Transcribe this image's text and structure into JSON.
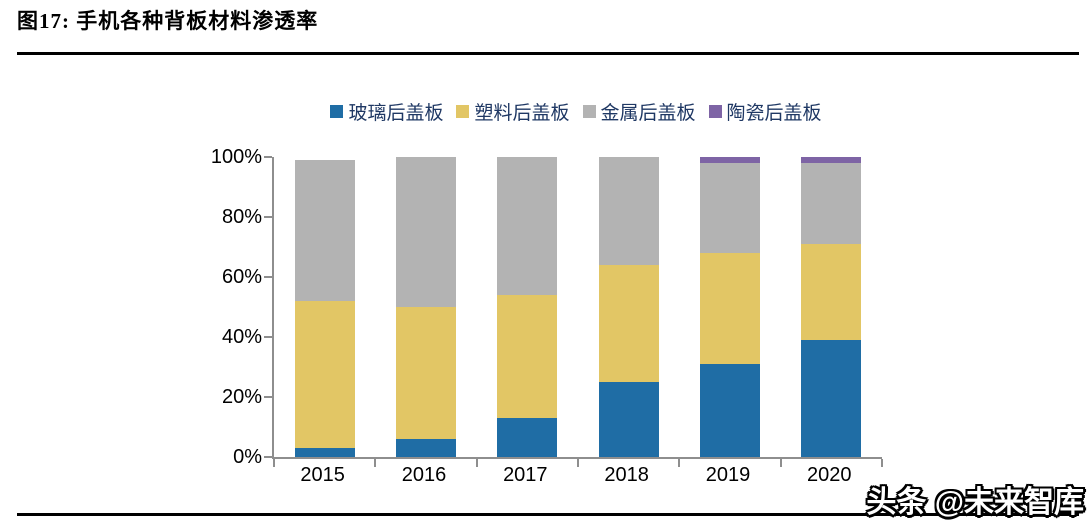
{
  "figure": {
    "title": "图17:  手机各种背板材料渗透率",
    "watermark": "头条 @未来智库"
  },
  "chart_data": {
    "type": "bar",
    "stacked": true,
    "title": "手机各种背板材料渗透率",
    "categories": [
      "2015",
      "2016",
      "2017",
      "2018",
      "2019",
      "2020"
    ],
    "series": [
      {
        "name": "玻璃后盖板",
        "color": "#1F6DA5",
        "values": [
          3,
          6,
          13,
          25,
          31,
          39
        ]
      },
      {
        "name": "塑料后盖板",
        "color": "#E2C665",
        "values": [
          49,
          44,
          41,
          39,
          37,
          32
        ]
      },
      {
        "name": "金属后盖板",
        "color": "#B3B3B3",
        "values": [
          47,
          50,
          46,
          36,
          30,
          27
        ]
      },
      {
        "name": "陶瓷后盖板",
        "color": "#7E64A5",
        "values": [
          0,
          0,
          0,
          0,
          2,
          2
        ]
      }
    ],
    "xlabel": "",
    "ylabel": "",
    "ylim": [
      0,
      100
    ],
    "yticks": [
      0,
      20,
      40,
      60,
      80,
      100
    ],
    "ytick_labels": [
      "0%",
      "20%",
      "40%",
      "60%",
      "80%",
      "100%"
    ],
    "grid": false,
    "legend_position": "top",
    "axis_color": "#8e8e8e",
    "legend_text_color": "#1F3864"
  }
}
